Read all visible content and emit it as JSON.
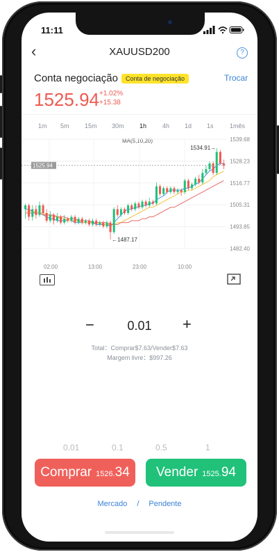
{
  "status": {
    "time": "11:11"
  },
  "header": {
    "title": "XAUUSD200",
    "back_icon": "chevron-left-icon",
    "help_icon": "question-circle-icon"
  },
  "account": {
    "label": "Conta negociação",
    "badge": "Conta de negociação",
    "switch_label": "Trocar"
  },
  "quote": {
    "price": "1525.94",
    "change_pct": "+1.02%",
    "change_abs": "+15.38",
    "color": "#ee5a52"
  },
  "timeframes": {
    "items": [
      "1m",
      "5m",
      "15m",
      "30m",
      "1h",
      "4h",
      "1d",
      "1s",
      "1mês"
    ],
    "active": "1h"
  },
  "chart": {
    "indicator_label": "MA(5,10,20)",
    "current_price_tag": "1525.94",
    "high_label": "1534.91→",
    "low_label": "←1487.17",
    "y_ticks": [
      "1539.68",
      "1528.23",
      "1516.77",
      "1505.31",
      "1493.85",
      "1482.40"
    ],
    "x_ticks": [
      "02:00",
      "13:00",
      "23:00",
      "10:00"
    ]
  },
  "chart_data": {
    "type": "candlestick",
    "ylim": [
      1482.4,
      1539.68
    ],
    "up_color": "#21c17a",
    "down_color": "#ee5a52",
    "candles": [
      {
        "o": 1503,
        "c": 1505,
        "h": 1506,
        "l": 1498
      },
      {
        "o": 1505,
        "c": 1499,
        "h": 1506,
        "l": 1497
      },
      {
        "o": 1499,
        "c": 1503,
        "h": 1505,
        "l": 1497
      },
      {
        "o": 1503,
        "c": 1500,
        "h": 1505,
        "l": 1498
      },
      {
        "o": 1500,
        "c": 1505,
        "h": 1507,
        "l": 1499
      },
      {
        "o": 1505,
        "c": 1501,
        "h": 1506,
        "l": 1500
      },
      {
        "o": 1501,
        "c": 1497,
        "h": 1503,
        "l": 1496
      },
      {
        "o": 1497,
        "c": 1500,
        "h": 1502,
        "l": 1496
      },
      {
        "o": 1500,
        "c": 1497,
        "h": 1501,
        "l": 1495
      },
      {
        "o": 1497,
        "c": 1499,
        "h": 1501,
        "l": 1496
      },
      {
        "o": 1499,
        "c": 1496,
        "h": 1500,
        "l": 1495
      },
      {
        "o": 1496,
        "c": 1498,
        "h": 1500,
        "l": 1495
      },
      {
        "o": 1498,
        "c": 1497,
        "h": 1499,
        "l": 1496
      },
      {
        "o": 1497,
        "c": 1499,
        "h": 1500,
        "l": 1496
      },
      {
        "o": 1499,
        "c": 1496,
        "h": 1500,
        "l": 1495
      },
      {
        "o": 1496,
        "c": 1498,
        "h": 1499,
        "l": 1495
      },
      {
        "o": 1498,
        "c": 1496,
        "h": 1499,
        "l": 1495
      },
      {
        "o": 1496,
        "c": 1497,
        "h": 1498,
        "l": 1495
      },
      {
        "o": 1497,
        "c": 1495,
        "h": 1498,
        "l": 1494
      },
      {
        "o": 1495,
        "c": 1497,
        "h": 1498,
        "l": 1494
      },
      {
        "o": 1497,
        "c": 1495,
        "h": 1498,
        "l": 1494
      },
      {
        "o": 1495,
        "c": 1496,
        "h": 1497,
        "l": 1494
      },
      {
        "o": 1496,
        "c": 1494,
        "h": 1497,
        "l": 1493
      },
      {
        "o": 1494,
        "c": 1496,
        "h": 1497,
        "l": 1493
      },
      {
        "o": 1496,
        "c": 1491,
        "h": 1497,
        "l": 1487.17
      },
      {
        "o": 1491,
        "c": 1503,
        "h": 1504,
        "l": 1490
      },
      {
        "o": 1503,
        "c": 1500,
        "h": 1505,
        "l": 1499
      },
      {
        "o": 1500,
        "c": 1503,
        "h": 1504,
        "l": 1499
      },
      {
        "o": 1503,
        "c": 1501,
        "h": 1504,
        "l": 1500
      },
      {
        "o": 1501,
        "c": 1505,
        "h": 1506,
        "l": 1500
      },
      {
        "o": 1505,
        "c": 1503,
        "h": 1506,
        "l": 1502
      },
      {
        "o": 1503,
        "c": 1506,
        "h": 1507,
        "l": 1502
      },
      {
        "o": 1506,
        "c": 1504,
        "h": 1507,
        "l": 1503
      },
      {
        "o": 1504,
        "c": 1507,
        "h": 1508,
        "l": 1503
      },
      {
        "o": 1507,
        "c": 1505,
        "h": 1508,
        "l": 1504
      },
      {
        "o": 1505,
        "c": 1507,
        "h": 1509,
        "l": 1504
      },
      {
        "o": 1507,
        "c": 1506,
        "h": 1508,
        "l": 1505
      },
      {
        "o": 1506,
        "c": 1515,
        "h": 1517,
        "l": 1505
      },
      {
        "o": 1515,
        "c": 1511,
        "h": 1516,
        "l": 1510
      },
      {
        "o": 1511,
        "c": 1514,
        "h": 1515,
        "l": 1510
      },
      {
        "o": 1514,
        "c": 1512,
        "h": 1515,
        "l": 1511
      },
      {
        "o": 1512,
        "c": 1514,
        "h": 1515,
        "l": 1511
      },
      {
        "o": 1514,
        "c": 1512,
        "h": 1515,
        "l": 1511
      },
      {
        "o": 1512,
        "c": 1513,
        "h": 1514,
        "l": 1511
      },
      {
        "o": 1513,
        "c": 1512,
        "h": 1514,
        "l": 1510
      },
      {
        "o": 1512,
        "c": 1518,
        "h": 1519,
        "l": 1511
      },
      {
        "o": 1518,
        "c": 1514,
        "h": 1519,
        "l": 1513
      },
      {
        "o": 1514,
        "c": 1516,
        "h": 1517,
        "l": 1513
      },
      {
        "o": 1516,
        "c": 1519,
        "h": 1520,
        "l": 1515
      },
      {
        "o": 1519,
        "c": 1517,
        "h": 1521,
        "l": 1516
      },
      {
        "o": 1517,
        "c": 1522,
        "h": 1524,
        "l": 1516
      },
      {
        "o": 1522,
        "c": 1524,
        "h": 1526,
        "l": 1521
      },
      {
        "o": 1524,
        "c": 1527,
        "h": 1528,
        "l": 1523
      },
      {
        "o": 1527,
        "c": 1522,
        "h": 1528,
        "l": 1521
      },
      {
        "o": 1522,
        "c": 1533,
        "h": 1534.91,
        "l": 1521
      },
      {
        "o": 1533,
        "c": 1527,
        "h": 1534,
        "l": 1526
      },
      {
        "o": 1527,
        "c": 1525.94,
        "h": 1529,
        "l": 1524
      }
    ],
    "ma_lines": [
      {
        "color": "#4a90e2",
        "values": [
          1503,
          1503,
          1502,
          1501,
          1501,
          1500,
          1499,
          1498,
          1498,
          1497,
          1497,
          1497,
          1497,
          1497,
          1496,
          1496,
          1496,
          1496,
          1496,
          1496,
          1495,
          1495,
          1495,
          1495,
          1494,
          1496,
          1498,
          1500,
          1502,
          1503,
          1503,
          1504,
          1504,
          1505,
          1505,
          1506,
          1506,
          1508,
          1509,
          1510,
          1512,
          1513,
          1513,
          1513,
          1513,
          1514,
          1514,
          1515,
          1516,
          1517,
          1519,
          1521,
          1523,
          1524,
          1526,
          1527,
          1527
        ]
      },
      {
        "color": "#f5c242",
        "values": [
          1502,
          1502,
          1502,
          1501,
          1501,
          1501,
          1500,
          1500,
          1499,
          1499,
          1498,
          1498,
          1497,
          1497,
          1497,
          1497,
          1496,
          1496,
          1496,
          1496,
          1496,
          1496,
          1495,
          1495,
          1495,
          1495,
          1496,
          1496,
          1497,
          1498,
          1499,
          1500,
          1501,
          1502,
          1503,
          1504,
          1504,
          1505,
          1506,
          1507,
          1508,
          1509,
          1510,
          1511,
          1512,
          1512,
          1513,
          1513,
          1514,
          1515,
          1516,
          1517,
          1518,
          1520,
          1521,
          1522,
          1523
        ]
      },
      {
        "color": "#e86a6a",
        "values": [
          1501,
          1501,
          1501,
          1501,
          1501,
          1500,
          1500,
          1500,
          1500,
          1499,
          1499,
          1499,
          1498,
          1498,
          1498,
          1497,
          1497,
          1497,
          1497,
          1496,
          1496,
          1496,
          1496,
          1496,
          1495,
          1495,
          1495,
          1496,
          1496,
          1496,
          1497,
          1497,
          1497,
          1498,
          1498,
          1499,
          1499,
          1500,
          1501,
          1502,
          1503,
          1504,
          1504,
          1505,
          1506,
          1507,
          1508,
          1509,
          1510,
          1511,
          1512,
          1513,
          1514,
          1515,
          1516,
          1517,
          1518
        ]
      }
    ]
  },
  "toolbar": {
    "indicator_icon": "bar-chart-icon",
    "fullscreen_icon": "fullscreen-icon"
  },
  "order": {
    "minus": "−",
    "quantity": "0.01",
    "plus": "+",
    "total": "Total：Comprar$7.63/Vender$7.63",
    "margin": "Margem livre：$997.26",
    "presets": [
      "0.01",
      "0.1",
      "0.5",
      "1"
    ]
  },
  "buy": {
    "label": "Comprar",
    "price_small": "1526.",
    "price_big": "34",
    "color": "#f0605a"
  },
  "sell": {
    "label": "Vender",
    "price_small": "1525.",
    "price_big": "94",
    "color": "#21c17a"
  },
  "order_types": {
    "market": "Mercado",
    "separator": "/",
    "pending": "Pendente"
  }
}
